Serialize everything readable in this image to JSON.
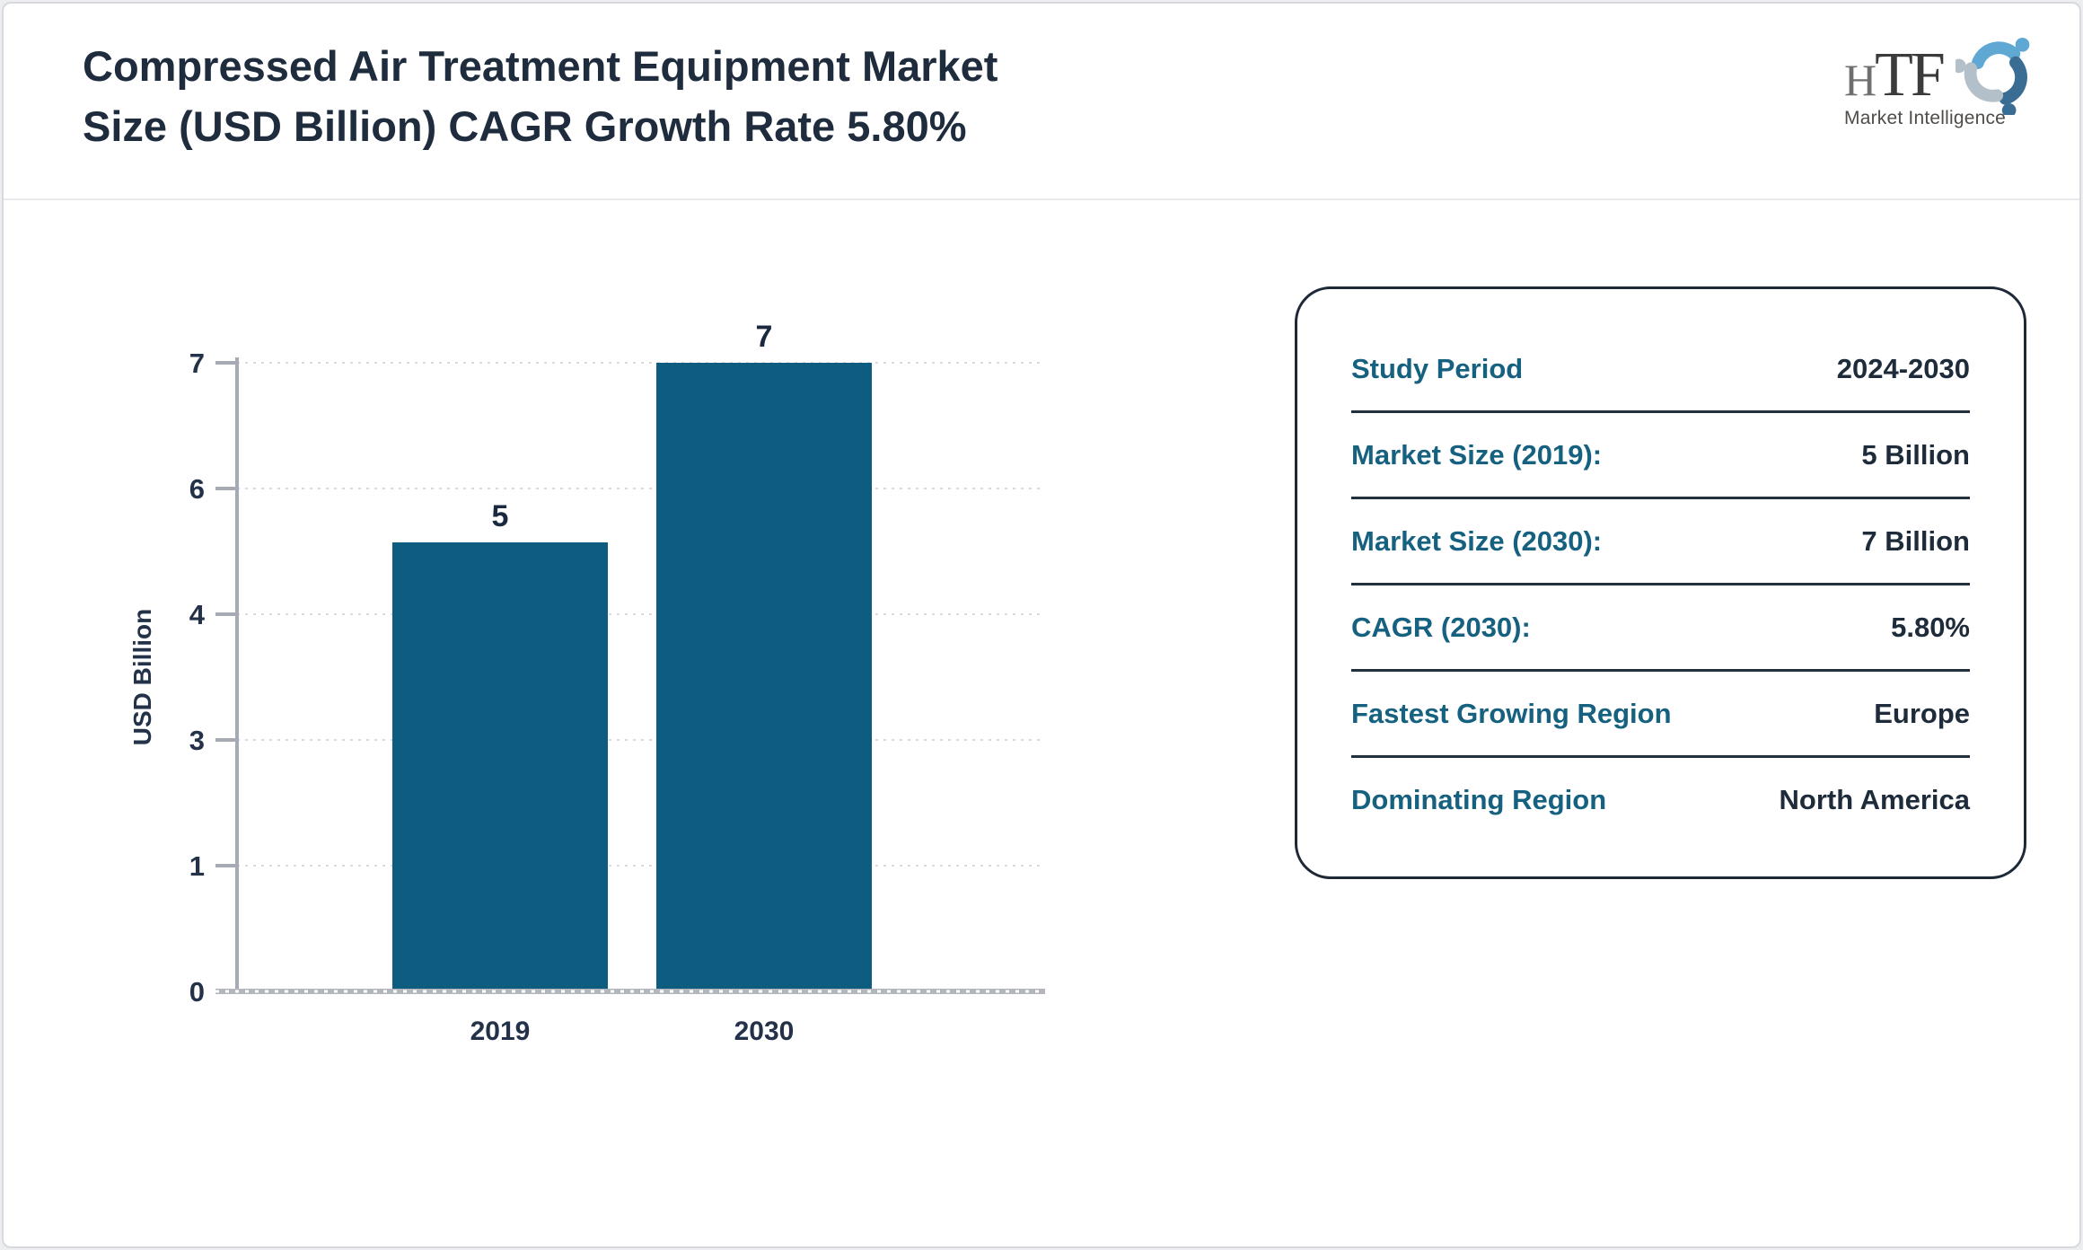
{
  "header": {
    "title": "Compressed Air Treatment Equipment Market\nSize (USD Billion) CAGR Growth Rate 5.80%"
  },
  "logo": {
    "letter_h": "H",
    "letters_tf": "TF",
    "tagline": "Market Intelligence",
    "colors": {
      "swirl_light_blue": "#5fa8d3",
      "swirl_steel_blue": "#3a6d94",
      "swirl_gray": "#b3c0ca"
    }
  },
  "chart_data": {
    "type": "bar",
    "title": "Compressed Air Treatment Equipment Market Size (USD Billion) CAGR Growth Rate 5.80%",
    "categories": [
      "2019",
      "2030"
    ],
    "values": [
      5,
      7
    ],
    "data_labels": [
      "5",
      "7"
    ],
    "xlabel": "",
    "ylabel": "USD Billion",
    "ylim": [
      0,
      7
    ],
    "ytick_labels": [
      "0",
      "1",
      "3",
      "4",
      "6",
      "7"
    ],
    "bar_color": "#0e5d80",
    "grid": "horizontal dashed",
    "legend": "none"
  },
  "panel": {
    "rows": [
      {
        "label": "Study Period",
        "value": "2024-2030"
      },
      {
        "label": "Market Size (2019):",
        "value": "5 Billion"
      },
      {
        "label": "Market Size (2030):",
        "value": "7 Billion"
      },
      {
        "label": "CAGR (2030):",
        "value": "5.80%"
      },
      {
        "label": "Fastest Growing Region",
        "value": "Europe"
      },
      {
        "label": "Dominating Region",
        "value": "North America"
      }
    ]
  }
}
